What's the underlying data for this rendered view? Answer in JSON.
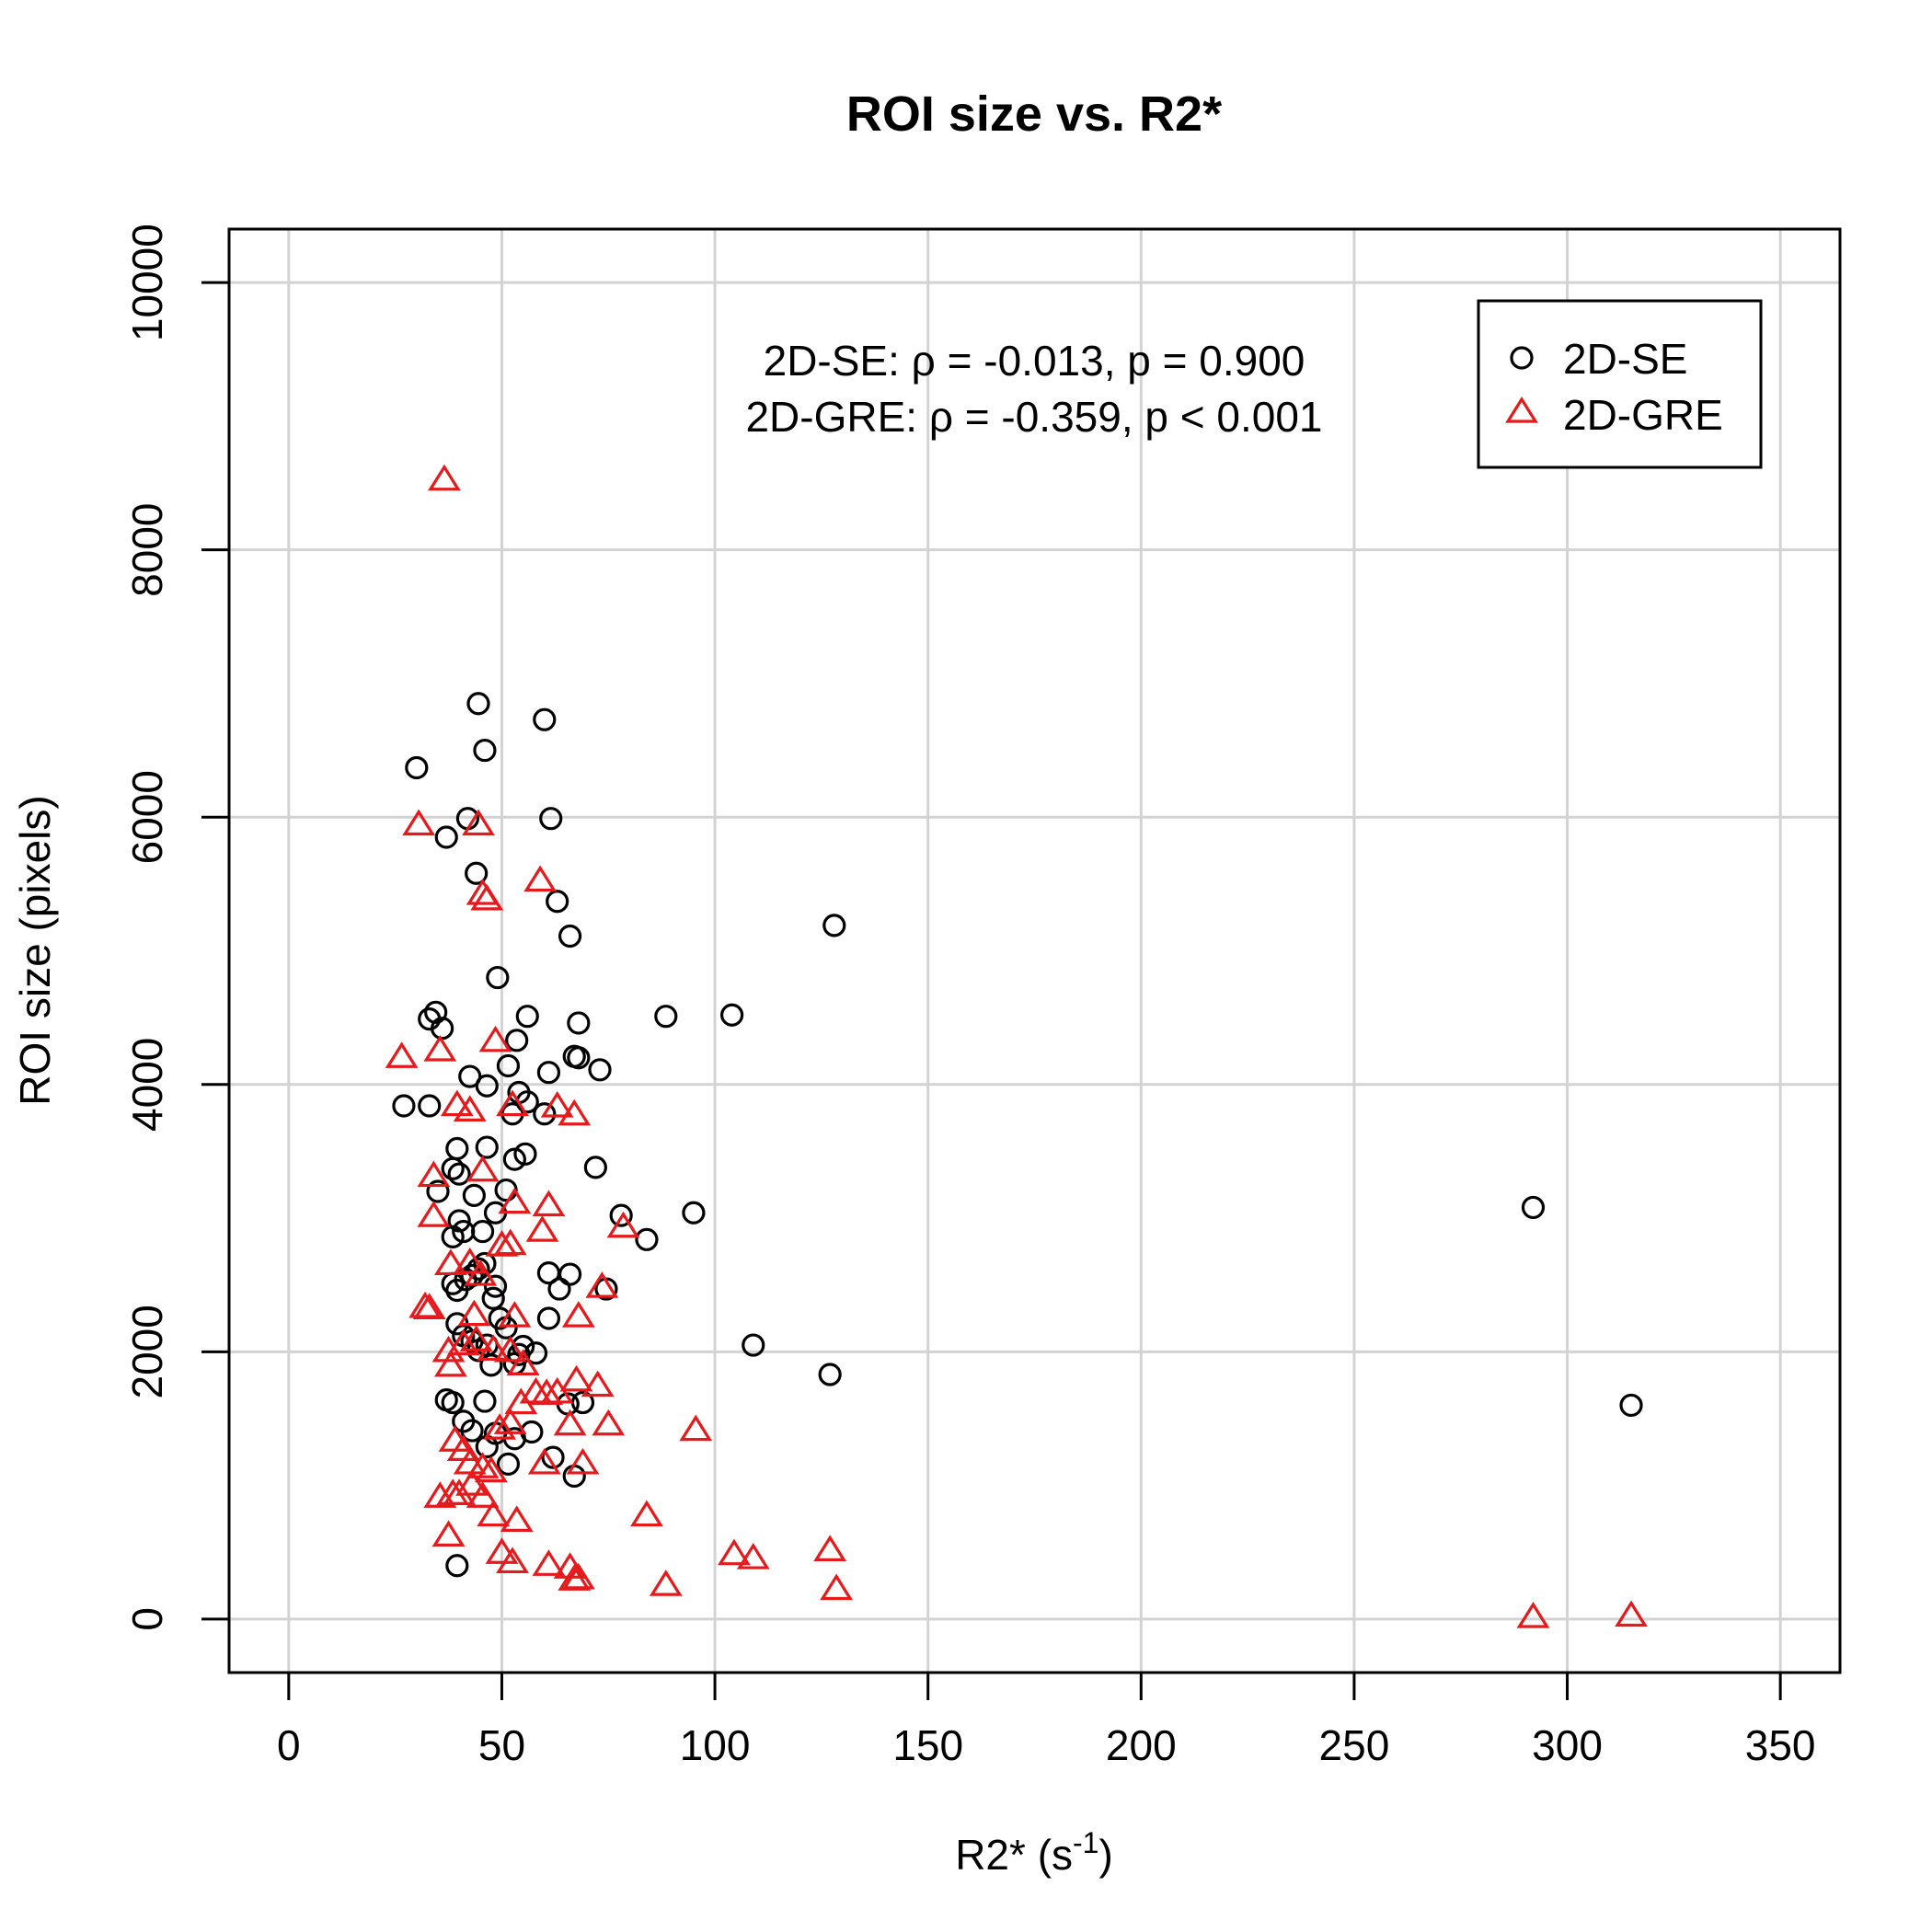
{
  "chart_data": {
    "type": "scatter",
    "title": "ROI size vs. R2*",
    "xlabel": {
      "main": "R2* (s",
      "superscript": "-1",
      "tail": ")"
    },
    "ylabel": "ROI size (pixels)",
    "xlim": [
      -14,
      364
    ],
    "ylim": [
      -400,
      10400
    ],
    "xticks": [
      0,
      50,
      100,
      150,
      200,
      250,
      300,
      350
    ],
    "yticks": [
      0,
      2000,
      4000,
      6000,
      8000,
      10000
    ],
    "xtick_labels": [
      "0",
      "50",
      "100",
      "150",
      "200",
      "250",
      "300",
      "350"
    ],
    "ytick_labels": [
      "0",
      "2000",
      "4000",
      "6000",
      "8000",
      "10000"
    ],
    "grid": true,
    "legend_position": "top-right",
    "legend": [
      {
        "name": "2D-SE",
        "marker": "circle",
        "color": "#000000"
      },
      {
        "name": "2D-GRE",
        "marker": "triangle",
        "color": "#e41a1c"
      }
    ],
    "annotations": [
      {
        "text": "2D-SE: ρ = -0.013, p = 0.900",
        "color": "#000000"
      },
      {
        "text": "2D-GRE: ρ = -0.359, p < 0.001",
        "color": "#e41a1c"
      }
    ],
    "series": [
      {
        "name": "2D-SE",
        "marker": "circle",
        "color": "#000000",
        "points": [
          [
            30,
            6370
          ],
          [
            37,
            5850
          ],
          [
            42,
            5990
          ],
          [
            44,
            5580
          ],
          [
            44.5,
            6850
          ],
          [
            46,
            6500
          ],
          [
            60,
            6730
          ],
          [
            61.5,
            5990
          ],
          [
            63,
            5370
          ],
          [
            66,
            5110
          ],
          [
            49,
            4800
          ],
          [
            33,
            4490
          ],
          [
            34.5,
            4540
          ],
          [
            36,
            4420
          ],
          [
            56,
            4510
          ],
          [
            68,
            4460
          ],
          [
            88.5,
            4510
          ],
          [
            104,
            4520
          ],
          [
            128,
            5190
          ],
          [
            27,
            3840
          ],
          [
            33,
            3840
          ],
          [
            42.5,
            4060
          ],
          [
            46.5,
            3990
          ],
          [
            51.5,
            4140
          ],
          [
            53.5,
            4330
          ],
          [
            54,
            3940
          ],
          [
            56,
            3870
          ],
          [
            60,
            3780
          ],
          [
            52.5,
            3780
          ],
          [
            61,
            4090
          ],
          [
            67,
            4210
          ],
          [
            68,
            4200
          ],
          [
            73,
            4110
          ],
          [
            39.5,
            3520
          ],
          [
            46.5,
            3530
          ],
          [
            53,
            3440
          ],
          [
            55.5,
            3480
          ],
          [
            35,
            3200
          ],
          [
            38.5,
            3370
          ],
          [
            40,
            3330
          ],
          [
            43.5,
            3170
          ],
          [
            51,
            3210
          ],
          [
            72,
            3380
          ],
          [
            38.5,
            2860
          ],
          [
            40,
            2980
          ],
          [
            41,
            2900
          ],
          [
            45.5,
            2900
          ],
          [
            48.5,
            3040
          ],
          [
            78,
            3020
          ],
          [
            84,
            2840
          ],
          [
            95,
            3040
          ],
          [
            292,
            3080
          ],
          [
            38.5,
            2510
          ],
          [
            39.5,
            2460
          ],
          [
            41.5,
            2540
          ],
          [
            43,
            2570
          ],
          [
            44.5,
            2620
          ],
          [
            46,
            2660
          ],
          [
            48.5,
            2490
          ],
          [
            48,
            2400
          ],
          [
            61,
            2590
          ],
          [
            63.5,
            2470
          ],
          [
            66,
            2580
          ],
          [
            74.5,
            2470
          ],
          [
            39.5,
            2210
          ],
          [
            41,
            2120
          ],
          [
            43,
            2080
          ],
          [
            44.5,
            2010
          ],
          [
            46.5,
            2050
          ],
          [
            47.5,
            1900
          ],
          [
            49.5,
            2250
          ],
          [
            51,
            2180
          ],
          [
            53,
            1910
          ],
          [
            54,
            1980
          ],
          [
            55,
            2040
          ],
          [
            58,
            1990
          ],
          [
            61,
            2250
          ],
          [
            109,
            2050
          ],
          [
            127,
            1830
          ],
          [
            37,
            1640
          ],
          [
            38.5,
            1620
          ],
          [
            41,
            1480
          ],
          [
            43,
            1410
          ],
          [
            46,
            1630
          ],
          [
            46.5,
            1290
          ],
          [
            48.5,
            1390
          ],
          [
            51.5,
            1160
          ],
          [
            53,
            1350
          ],
          [
            57,
            1400
          ],
          [
            62,
            1210
          ],
          [
            65.5,
            1610
          ],
          [
            67,
            1070
          ],
          [
            69,
            1620
          ],
          [
            315,
            1600
          ],
          [
            39.5,
            400
          ]
        ]
      },
      {
        "name": "2D-GRE",
        "marker": "triangle",
        "color": "#e41a1c",
        "points": [
          [
            36.5,
            8530
          ],
          [
            30.5,
            5950
          ],
          [
            44.5,
            5950
          ],
          [
            45.5,
            5430
          ],
          [
            46.5,
            5390
          ],
          [
            59,
            5530
          ],
          [
            26.5,
            4210
          ],
          [
            35.5,
            4260
          ],
          [
            48.5,
            4330
          ],
          [
            39.5,
            3850
          ],
          [
            42.5,
            3810
          ],
          [
            52.5,
            3850
          ],
          [
            63,
            3840
          ],
          [
            67,
            3780
          ],
          [
            34,
            3320
          ],
          [
            45.5,
            3360
          ],
          [
            53,
            3120
          ],
          [
            61,
            3100
          ],
          [
            34,
            3020
          ],
          [
            59.5,
            2910
          ],
          [
            50,
            2800
          ],
          [
            52,
            2810
          ],
          [
            78.5,
            2940
          ],
          [
            38,
            2660
          ],
          [
            42.5,
            2670
          ],
          [
            45,
            2580
          ],
          [
            73.5,
            2490
          ],
          [
            32,
            2340
          ],
          [
            33,
            2330
          ],
          [
            43.5,
            2280
          ],
          [
            53,
            2270
          ],
          [
            68,
            2270
          ],
          [
            37.5,
            2010
          ],
          [
            38,
            1900
          ],
          [
            41,
            2060
          ],
          [
            44,
            2090
          ],
          [
            48,
            2020
          ],
          [
            52,
            2010
          ],
          [
            55,
            1910
          ],
          [
            54.5,
            1620
          ],
          [
            58,
            1700
          ],
          [
            60.5,
            1690
          ],
          [
            63,
            1700
          ],
          [
            67.5,
            1790
          ],
          [
            72.5,
            1750
          ],
          [
            75,
            1460
          ],
          [
            66,
            1460
          ],
          [
            95.5,
            1420
          ],
          [
            39,
            1340
          ],
          [
            41,
            1270
          ],
          [
            42.5,
            1170
          ],
          [
            45.5,
            1140
          ],
          [
            47.5,
            1110
          ],
          [
            49.5,
            1430
          ],
          [
            52,
            1470
          ],
          [
            60,
            1170
          ],
          [
            69,
            1170
          ],
          [
            35.5,
            920
          ],
          [
            38.5,
            940
          ],
          [
            40,
            940
          ],
          [
            43,
            1010
          ],
          [
            45.5,
            920
          ],
          [
            37.5,
            630
          ],
          [
            48,
            780
          ],
          [
            50,
            500
          ],
          [
            52.5,
            430
          ],
          [
            53.5,
            740
          ],
          [
            61,
            410
          ],
          [
            66,
            390
          ],
          [
            68,
            310
          ],
          [
            67,
            300
          ],
          [
            84,
            780
          ],
          [
            88.5,
            260
          ],
          [
            104.5,
            490
          ],
          [
            109,
            460
          ],
          [
            127,
            520
          ],
          [
            128.5,
            230
          ],
          [
            292,
            20
          ],
          [
            315,
            30
          ]
        ]
      }
    ]
  }
}
